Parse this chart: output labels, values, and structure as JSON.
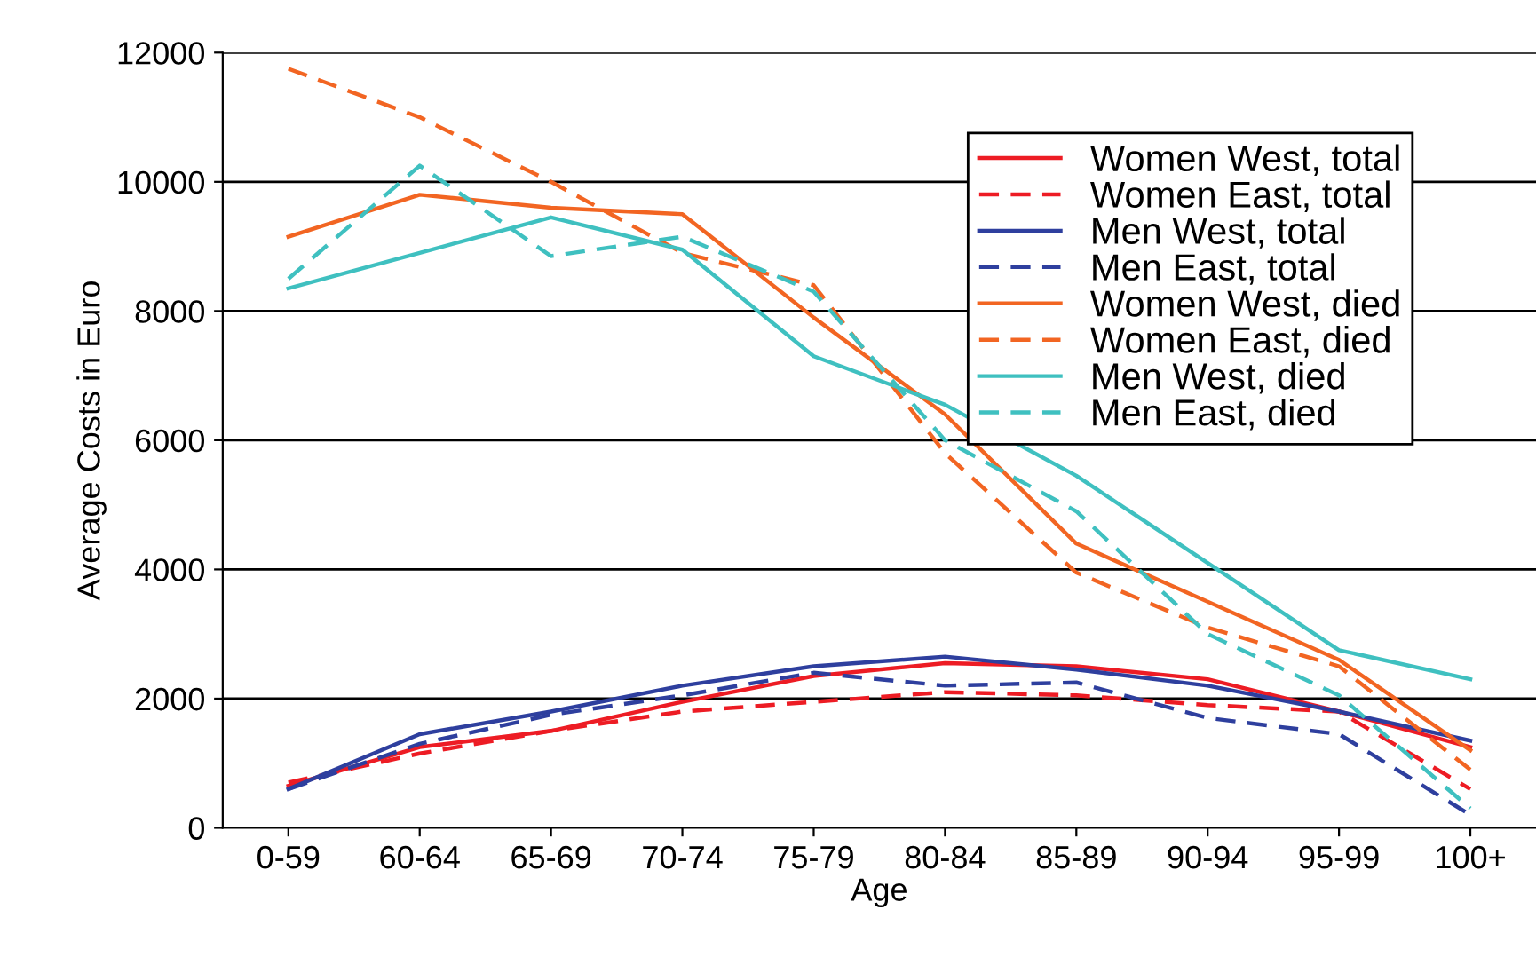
{
  "chart_data": {
    "type": "line",
    "xlabel": "Age",
    "ylabel": "Average Costs in Euro",
    "categories": [
      "0-59",
      "60-64",
      "65-69",
      "70-74",
      "75-79",
      "80-84",
      "85-89",
      "90-94",
      "95-99",
      "100+"
    ],
    "series": [
      {
        "name": "Women West, total",
        "color": "#ed1c24",
        "line_style": "solid",
        "values": [
          650,
          1250,
          1500,
          1950,
          2350,
          2550,
          2500,
          2300,
          1800,
          1250
        ]
      },
      {
        "name": "Women East, total",
        "color": "#ed1c24",
        "line_style": "dashed",
        "values": [
          700,
          1150,
          1500,
          1800,
          1950,
          2100,
          2050,
          1900,
          1800,
          600
        ]
      },
      {
        "name": "Men West, total",
        "color": "#2e3f9e",
        "line_style": "solid",
        "values": [
          600,
          1450,
          1800,
          2200,
          2500,
          2650,
          2450,
          2200,
          1800,
          1350
        ]
      },
      {
        "name": "Men East, total",
        "color": "#2e3f9e",
        "line_style": "dashed",
        "values": [
          600,
          1300,
          1750,
          2050,
          2400,
          2200,
          2250,
          1700,
          1450,
          200
        ]
      },
      {
        "name": "Women West, died",
        "color": "#f26522",
        "line_style": "solid",
        "values": [
          9150,
          9800,
          9600,
          9500,
          7900,
          6400,
          4400,
          3500,
          2600,
          1200
        ]
      },
      {
        "name": "Women East, died",
        "color": "#f26522",
        "line_style": "dashed",
        "values": [
          11750,
          11000,
          10000,
          8900,
          8400,
          5800,
          3950,
          3100,
          2500,
          900
        ]
      },
      {
        "name": "Men West, died",
        "color": "#3fc0c0",
        "line_style": "solid",
        "values": [
          8350,
          8900,
          9450,
          8950,
          7300,
          6550,
          5450,
          4100,
          2750,
          2300
        ]
      },
      {
        "name": "Men East, died",
        "color": "#3fc0c0",
        "line_style": "dashed",
        "values": [
          8500,
          10250,
          8850,
          9150,
          8300,
          6000,
          4900,
          3000,
          2050,
          300
        ]
      }
    ],
    "ylim": [
      0,
      12000
    ],
    "yticks": [
      0,
      2000,
      4000,
      6000,
      8000,
      10000,
      12000
    ],
    "grid": "y",
    "legend": "top right",
    "marker": "none"
  }
}
